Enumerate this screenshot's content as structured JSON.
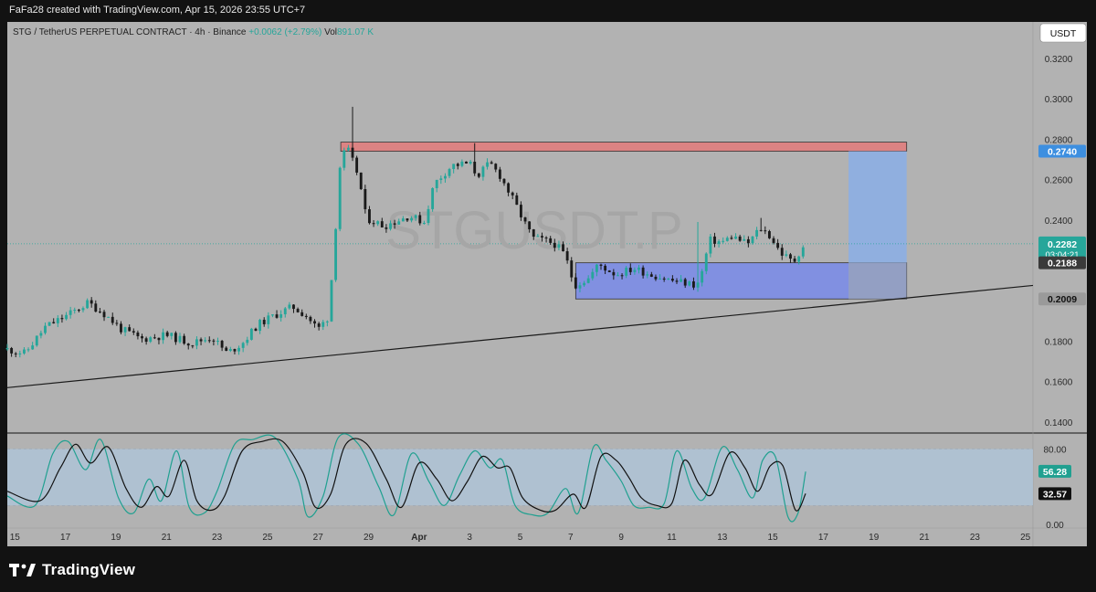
{
  "header": {
    "text": "FaFa28 created with TradingView.com, Apr 15, 2026 23:55 UTC+7"
  },
  "legend": {
    "title": "STG / TetherUS PERPETUAL CONTRACT · 4h · Binance",
    "change": "+0.0062 (+2.79%)",
    "vol_label": "Vol",
    "vol_value": "891.07 K"
  },
  "currency_button": "USDT",
  "watermark": "STGUSDT.P",
  "footer": {
    "brand": "TradingView"
  },
  "colors": {
    "pane_bg": "#b2b2b2",
    "up": "#26a69a",
    "down": "#1a1a1a",
    "resistance_zone": "#e07d7d",
    "support_zone": "#7b8ce6",
    "target_zone": "#8aaee6",
    "stoch_band": "#aec3d6",
    "stoch_k": "#20a090",
    "stoch_d": "#111111",
    "price_badge": "#26a69a",
    "target_badge": "#3d8fe0"
  },
  "chart_data": [
    {
      "type": "candlestick",
      "symbol": "STGUSDT.P",
      "interval": "4h",
      "y_axis_ticks": [
        "0.3200",
        "0.3000",
        "0.2800",
        "0.2600",
        "0.2400",
        "0.2000",
        "0.1800",
        "0.1600",
        "0.1400"
      ],
      "ylim": [
        0.135,
        0.338
      ],
      "x_axis_ticks": [
        {
          "label": "15",
          "day": 0
        },
        {
          "label": "17",
          "day": 2
        },
        {
          "label": "19",
          "day": 4
        },
        {
          "label": "21",
          "day": 6
        },
        {
          "label": "23",
          "day": 8
        },
        {
          "label": "25",
          "day": 10
        },
        {
          "label": "27",
          "day": 12
        },
        {
          "label": "29",
          "day": 14
        },
        {
          "label": "Apr",
          "day": 16
        },
        {
          "label": "3",
          "day": 18
        },
        {
          "label": "5",
          "day": 20
        },
        {
          "label": "7",
          "day": 22
        },
        {
          "label": "9",
          "day": 24
        },
        {
          "label": "11",
          "day": 26
        },
        {
          "label": "13",
          "day": 28
        },
        {
          "label": "15",
          "day": 30
        },
        {
          "label": "17",
          "day": 32
        },
        {
          "label": "19",
          "day": 34
        },
        {
          "label": "21",
          "day": 36
        },
        {
          "label": "23",
          "day": 38
        },
        {
          "label": "25",
          "day": 40
        }
      ],
      "xlim": [
        -0.3,
        40.3
      ],
      "price_path": [
        [
          -0.3,
          0.176
        ],
        [
          0.4,
          0.174
        ],
        [
          1.2,
          0.187
        ],
        [
          2.1,
          0.193
        ],
        [
          2.9,
          0.199
        ],
        [
          3.5,
          0.194
        ],
        [
          4.2,
          0.186
        ],
        [
          5.0,
          0.181
        ],
        [
          6.0,
          0.183
        ],
        [
          7.0,
          0.179
        ],
        [
          7.8,
          0.182
        ],
        [
          8.4,
          0.174
        ],
        [
          9.0,
          0.179
        ],
        [
          9.6,
          0.188
        ],
        [
          10.3,
          0.193
        ],
        [
          11.0,
          0.197
        ],
        [
          11.5,
          0.193
        ],
        [
          12.0,
          0.186
        ],
        [
          12.4,
          0.192
        ],
        [
          12.6,
          0.22
        ],
        [
          12.9,
          0.272
        ],
        [
          13.2,
          0.274
        ],
        [
          13.6,
          0.262
        ],
        [
          13.9,
          0.241
        ],
        [
          14.6,
          0.237
        ],
        [
          15.6,
          0.242
        ],
        [
          16.2,
          0.239
        ],
        [
          16.6,
          0.258
        ],
        [
          17.3,
          0.267
        ],
        [
          18.0,
          0.268
        ],
        [
          18.3,
          0.262
        ],
        [
          18.8,
          0.268
        ],
        [
          19.2,
          0.262
        ],
        [
          19.8,
          0.248
        ],
        [
          20.2,
          0.238
        ],
        [
          20.5,
          0.231
        ],
        [
          20.9,
          0.23
        ],
        [
          21.4,
          0.228
        ],
        [
          21.8,
          0.222
        ],
        [
          22.0,
          0.213
        ],
        [
          22.2,
          0.208
        ],
        [
          22.7,
          0.211
        ],
        [
          23.1,
          0.218
        ],
        [
          23.8,
          0.213
        ],
        [
          24.5,
          0.216
        ],
        [
          25.2,
          0.213
        ],
        [
          26.0,
          0.21
        ],
        [
          26.9,
          0.208
        ],
        [
          27.1,
          0.209
        ],
        [
          27.5,
          0.23
        ],
        [
          28.0,
          0.229
        ],
        [
          28.4,
          0.232
        ],
        [
          29.0,
          0.228
        ],
        [
          29.5,
          0.236
        ],
        [
          29.9,
          0.232
        ],
        [
          30.3,
          0.224
        ],
        [
          30.7,
          0.22
        ],
        [
          30.9,
          0.22
        ],
        [
          31.0,
          0.223
        ],
        [
          31.3,
          0.229
        ]
      ],
      "wick_highs": [
        {
          "day": 13.3,
          "value": 0.296
        },
        {
          "day": 18.2,
          "value": 0.278
        },
        {
          "day": 27.0,
          "value": 0.239
        },
        {
          "day": 29.5,
          "value": 0.241
        }
      ],
      "trendline": {
        "from": {
          "day": -0.3,
          "value": 0.157
        },
        "to": {
          "day": 40.3,
          "value": 0.2076
        }
      },
      "zones": [
        {
          "name": "resistance",
          "day_from": 12.9,
          "day_to": 35.3,
          "from": 0.274,
          "to": 0.2785
        },
        {
          "name": "support",
          "day_from": 22.2,
          "day_to": 35.3,
          "from": 0.2009,
          "to": 0.2188
        },
        {
          "name": "target",
          "day_from": 33.0,
          "day_to": 35.3,
          "from": 0.2188,
          "to": 0.274
        }
      ],
      "price_labels": [
        {
          "name": "target",
          "value": 0.274,
          "text": "0.2740"
        },
        {
          "name": "last",
          "value": 0.2282,
          "text": "0.2282",
          "subtext": "03:04:21"
        },
        {
          "name": "entry",
          "value": 0.2188,
          "text": "0.2188"
        },
        {
          "name": "stop",
          "value": 0.2009,
          "text": "0.2009"
        }
      ],
      "last_price": 0.2282
    },
    {
      "type": "line",
      "indicator": "stochastic",
      "y_axis_ticks": [
        "80.00",
        "0.00"
      ],
      "ylim": [
        -4,
        96
      ],
      "band": [
        20,
        80
      ],
      "values_shown": [
        {
          "name": "k",
          "value": 56.28,
          "text": "56.28"
        },
        {
          "name": "d",
          "value": 32.57,
          "text": "32.57"
        }
      ],
      "series": [
        {
          "key": "k",
          "points": [
            [
              -0.3,
              30
            ],
            [
              0.8,
              20
            ],
            [
              1.5,
              75
            ],
            [
              2.1,
              88
            ],
            [
              2.8,
              58
            ],
            [
              3.4,
              90
            ],
            [
              4.1,
              28
            ],
            [
              4.7,
              12
            ],
            [
              5.3,
              48
            ],
            [
              5.8,
              25
            ],
            [
              6.4,
              78
            ],
            [
              6.9,
              18
            ],
            [
              7.5,
              12
            ],
            [
              8.0,
              35
            ],
            [
              8.7,
              85
            ],
            [
              9.4,
              90
            ],
            [
              10.3,
              92
            ],
            [
              11.2,
              48
            ],
            [
              11.6,
              8
            ],
            [
              12.2,
              30
            ],
            [
              12.8,
              92
            ],
            [
              13.6,
              85
            ],
            [
              14.4,
              40
            ],
            [
              15.0,
              10
            ],
            [
              15.7,
              75
            ],
            [
              16.4,
              45
            ],
            [
              17.0,
              20
            ],
            [
              17.6,
              52
            ],
            [
              18.2,
              78
            ],
            [
              18.8,
              60
            ],
            [
              19.3,
              68
            ],
            [
              19.8,
              20
            ],
            [
              20.5,
              10
            ],
            [
              21.1,
              12
            ],
            [
              21.8,
              38
            ],
            [
              22.3,
              12
            ],
            [
              22.9,
              82
            ],
            [
              23.4,
              68
            ],
            [
              24.0,
              46
            ],
            [
              24.5,
              20
            ],
            [
              25.1,
              18
            ],
            [
              25.7,
              22
            ],
            [
              26.2,
              78
            ],
            [
              26.8,
              38
            ],
            [
              27.3,
              28
            ],
            [
              28.0,
              82
            ],
            [
              28.6,
              58
            ],
            [
              29.2,
              28
            ],
            [
              29.6,
              68
            ],
            [
              30.1,
              72
            ],
            [
              30.6,
              8
            ],
            [
              31.0,
              12
            ],
            [
              31.3,
              56
            ]
          ]
        },
        {
          "key": "d",
          "points": [
            [
              -0.3,
              35
            ],
            [
              1.0,
              25
            ],
            [
              1.8,
              60
            ],
            [
              2.4,
              85
            ],
            [
              3.0,
              65
            ],
            [
              3.7,
              82
            ],
            [
              4.4,
              38
            ],
            [
              5.0,
              18
            ],
            [
              5.6,
              40
            ],
            [
              6.1,
              30
            ],
            [
              6.7,
              68
            ],
            [
              7.2,
              25
            ],
            [
              7.8,
              15
            ],
            [
              8.3,
              30
            ],
            [
              9.0,
              78
            ],
            [
              9.8,
              88
            ],
            [
              10.6,
              88
            ],
            [
              11.4,
              55
            ],
            [
              11.9,
              18
            ],
            [
              12.5,
              32
            ],
            [
              13.1,
              85
            ],
            [
              13.9,
              86
            ],
            [
              14.7,
              48
            ],
            [
              15.3,
              18
            ],
            [
              16.0,
              65
            ],
            [
              16.7,
              48
            ],
            [
              17.3,
              25
            ],
            [
              17.9,
              45
            ],
            [
              18.5,
              72
            ],
            [
              19.1,
              60
            ],
            [
              19.6,
              60
            ],
            [
              20.1,
              28
            ],
            [
              20.8,
              15
            ],
            [
              21.4,
              15
            ],
            [
              22.1,
              32
            ],
            [
              22.6,
              18
            ],
            [
              23.2,
              72
            ],
            [
              23.8,
              68
            ],
            [
              24.3,
              50
            ],
            [
              24.8,
              28
            ],
            [
              25.4,
              20
            ],
            [
              26.0,
              22
            ],
            [
              26.5,
              68
            ],
            [
              27.1,
              42
            ],
            [
              27.6,
              32
            ],
            [
              28.3,
              76
            ],
            [
              28.9,
              60
            ],
            [
              29.4,
              35
            ],
            [
              29.9,
              62
            ],
            [
              30.4,
              62
            ],
            [
              30.9,
              15
            ],
            [
              31.3,
              32.57
            ]
          ]
        }
      ]
    }
  ]
}
